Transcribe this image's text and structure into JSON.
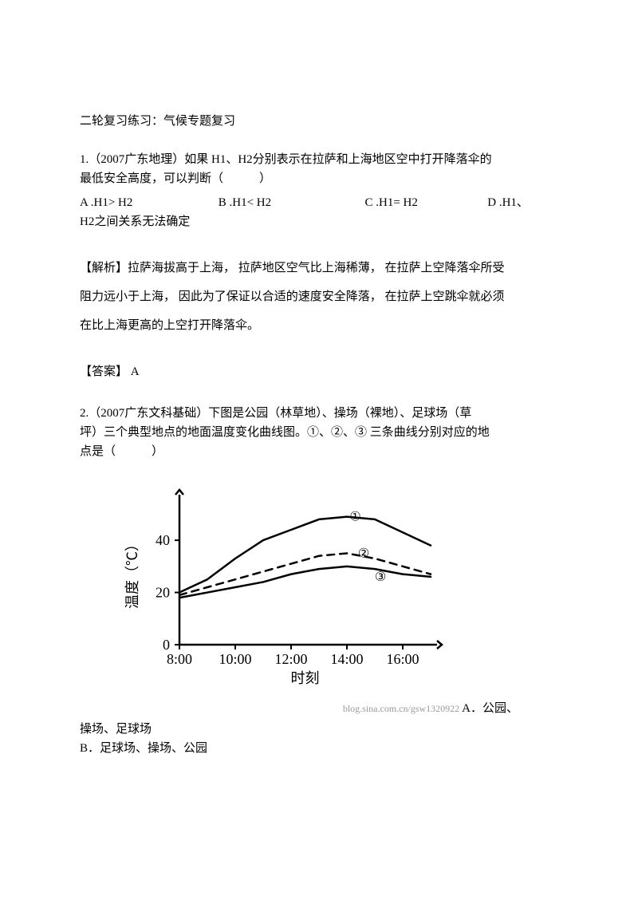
{
  "title": "二轮复习练习：气候专题复习",
  "q1": {
    "stem_l1": "1.（2007广东地理）如果  H1、H2分别表示在拉萨和上海地区空中打开降落伞的",
    "stem_l2": "最低安全高度，可以判断（　　　）",
    "optA": "A .H1> H2",
    "optB": "B  .H1< H2",
    "optC": "C  .H1= H2",
    "optD": "D  .H1、",
    "optD2": "H2之间关系无法确定"
  },
  "explain": {
    "l1": "【解析】拉萨海拔高于上海，   拉萨地区空气比上海稀薄，    在拉萨上空降落伞所受",
    "l2": "阻力远小于上海，  因此为了保证以合适的速度安全降落，     在拉萨上空跳伞就必须",
    "l3": "在比上海更高的上空打开降落伞。"
  },
  "answer": "【答案】 A",
  "q2": {
    "stem_l1": "2.（2007广东文科基础）下图是公园（林草地）、操场（裸地）、足球场（草",
    "stem_l2": "坪）三个典型地点的地面温度变化曲线图。①、②、③       三条曲线分别对应的地",
    "stem_l3": "点是（　　　）",
    "optA_tail": " A．公园、",
    "optA_l2": "操场、足球场",
    "optB": "B．足球场、操场、公园"
  },
  "watermark": "blog.sina.com.cn/gsw1320922",
  "chart": {
    "type": "line",
    "background_color": "#ffffff",
    "axis_color": "#000000",
    "line_color": "#000000",
    "line_width_axis": 2.5,
    "line_width_series": 2.5,
    "ylabel": "温度（℃）",
    "xlabel": "时刻",
    "y_ticks": [
      0,
      20,
      40
    ],
    "x_ticks": [
      "8:00",
      "10:00",
      "12:00",
      "14:00",
      "16:00"
    ],
    "x_values": [
      8,
      9,
      10,
      11,
      12,
      13,
      14,
      15,
      16,
      17
    ],
    "series": [
      {
        "name": "①",
        "dash": "solid",
        "label_pos": {
          "x": 14.3,
          "y": 49
        },
        "y": [
          20,
          25,
          33,
          40,
          44,
          48,
          49,
          48,
          43,
          38
        ]
      },
      {
        "name": "②",
        "dash": "dashed",
        "label_pos": {
          "x": 14.6,
          "y": 35
        },
        "y": [
          19,
          22,
          25,
          28,
          31,
          34,
          35,
          33,
          30,
          27
        ]
      },
      {
        "name": "③",
        "dash": "solid",
        "label_pos": {
          "x": 15.2,
          "y": 26
        },
        "y": [
          18,
          20,
          22,
          24,
          27,
          29,
          30,
          29,
          27,
          26
        ]
      }
    ],
    "label_fontsize": 18,
    "tick_fontsize": 18,
    "circle_label_fontsize": 16
  }
}
